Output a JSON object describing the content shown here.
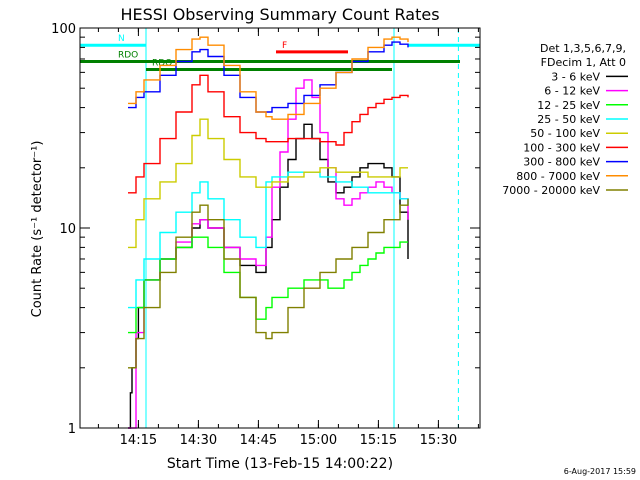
{
  "chart_data": {
    "type": "line",
    "title": "HESSI Observing Summary Count Rates",
    "xlabel": "Start Time (13-Feb-15 14:00:22)",
    "ylabel": "Count Rate (s⁻¹ detector⁻¹)",
    "y_scale": "log",
    "ylim": [
      1,
      100
    ],
    "xlim": [
      0,
      100
    ],
    "x_unit": "minutes after 14:00:22",
    "x_ticks": [
      {
        "value": 14.6,
        "label": "14:15"
      },
      {
        "value": 29.6,
        "label": "14:30"
      },
      {
        "value": 44.6,
        "label": "14:45"
      },
      {
        "value": 59.6,
        "label": "15:00"
      },
      {
        "value": 74.6,
        "label": "15:15"
      },
      {
        "value": 89.6,
        "label": "15:30"
      }
    ],
    "y_ticks": [
      {
        "value": 1,
        "label": "1"
      },
      {
        "value": 10,
        "label": "10"
      },
      {
        "value": 100,
        "label": "100"
      }
    ],
    "legend": {
      "placement": "right",
      "header": [
        "Det 1,3,5,6,7,9,",
        "FDecim 1, Att 0"
      ]
    },
    "series": [
      {
        "name": "3 - 6 keV",
        "color": "#000000",
        "x": [
          12,
          12.6,
          13,
          14,
          14.6,
          16,
          20,
          24,
          28,
          30,
          32,
          36,
          40,
          44,
          46.5,
          48,
          50,
          52,
          54,
          56,
          58,
          60,
          62,
          64,
          66,
          68,
          70,
          72,
          74,
          76,
          78,
          80,
          82
        ],
        "y": [
          1,
          1.5,
          2,
          2.8,
          4,
          5.5,
          7,
          8,
          10,
          11,
          10,
          8,
          6.5,
          6,
          8,
          11,
          16,
          22,
          28,
          33,
          28,
          22,
          17,
          15,
          16,
          18,
          20,
          21,
          21,
          20,
          18,
          12,
          7
        ]
      },
      {
        "name": "6 - 12 keV",
        "color": "#ff00ff",
        "x": [
          12,
          14,
          16,
          20,
          24,
          28,
          30,
          32,
          36,
          40,
          44,
          46.5,
          48,
          50,
          52,
          54,
          56,
          58,
          60,
          62,
          64,
          66,
          68,
          70,
          72,
          74,
          76,
          78,
          80,
          82
        ],
        "y": [
          1,
          3,
          5.5,
          7,
          8.5,
          10.5,
          11,
          10,
          8,
          7,
          6.5,
          9,
          16,
          24,
          35,
          50,
          55,
          45,
          30,
          20,
          14,
          13,
          14,
          15,
          16,
          17,
          16,
          15,
          14,
          11
        ]
      },
      {
        "name": "12 - 25 keV",
        "color": "#00ff00",
        "x": [
          12,
          14,
          16,
          20,
          24,
          28,
          30,
          32,
          36,
          40,
          44,
          46.5,
          48,
          52,
          56,
          60,
          62,
          64,
          66,
          68,
          70,
          72,
          74,
          76,
          78,
          80,
          82
        ],
        "y": [
          3,
          4,
          5.5,
          7,
          8,
          9,
          9,
          8,
          6,
          4.5,
          3.5,
          4,
          4.5,
          5,
          5.5,
          5.5,
          5,
          5,
          5.5,
          6,
          6.5,
          7,
          7.5,
          8,
          8,
          8.5,
          8.5
        ]
      },
      {
        "name": "25 - 50 keV",
        "color": "#00ffff",
        "x": [
          12,
          14,
          16,
          20,
          24,
          28,
          30,
          32,
          36,
          40,
          44,
          46.5,
          48,
          52,
          56,
          60,
          64,
          68,
          72,
          76,
          80,
          82
        ],
        "y": [
          4,
          5.5,
          7,
          9.5,
          12,
          15,
          17,
          14,
          11,
          9,
          8,
          17,
          18,
          19,
          19,
          18,
          17,
          16,
          15,
          15,
          14,
          13
        ]
      },
      {
        "name": "50 - 100 keV",
        "color": "#cccc00",
        "x": [
          12,
          14,
          16,
          20,
          24,
          28,
          30,
          32,
          36,
          40,
          44,
          46.5,
          48,
          52,
          56,
          60,
          64,
          68,
          72,
          76,
          80,
          82
        ],
        "y": [
          8,
          11,
          14,
          17,
          21,
          29,
          35,
          28,
          22,
          18,
          16,
          16,
          17,
          18,
          19,
          20,
          19,
          19,
          18,
          18,
          20,
          20
        ]
      },
      {
        "name": "100 - 300 keV",
        "color": "#ff0000",
        "x": [
          12,
          14,
          16,
          20,
          24,
          28,
          30,
          32,
          36,
          40,
          44,
          46.5,
          48,
          52,
          56,
          60,
          64,
          66,
          68,
          70,
          72,
          74,
          76,
          78,
          80,
          82
        ],
        "y": [
          15,
          18,
          21,
          28,
          38,
          52,
          58,
          48,
          36,
          30,
          28,
          27,
          27,
          28,
          28,
          27,
          26,
          30,
          34,
          37,
          40,
          42,
          44,
          45,
          46,
          45
        ]
      },
      {
        "name": "300 - 800 keV",
        "color": "#0000ff",
        "x": [
          12,
          14,
          16,
          20,
          24,
          28,
          30,
          32,
          36,
          40,
          44,
          46.5,
          48,
          52,
          56,
          60,
          64,
          68,
          72,
          76,
          78,
          80,
          82
        ],
        "y": [
          40,
          45,
          48,
          58,
          68,
          76,
          78,
          72,
          58,
          45,
          38,
          38,
          40,
          42,
          46,
          52,
          60,
          68,
          76,
          82,
          85,
          83,
          80
        ]
      },
      {
        "name": "800 - 7000 keV",
        "color": "#ff8c00",
        "x": [
          12,
          14,
          16,
          20,
          24,
          28,
          30,
          32,
          36,
          40,
          44,
          46.5,
          48,
          52,
          56,
          60,
          64,
          68,
          72,
          76,
          78,
          80,
          82
        ],
        "y": [
          42,
          48,
          55,
          65,
          78,
          88,
          90,
          82,
          65,
          48,
          38,
          36,
          35,
          37,
          42,
          50,
          60,
          70,
          80,
          88,
          90,
          88,
          85
        ]
      },
      {
        "name": "7000 - 20000 keV",
        "color": "#808000",
        "x": [
          12,
          14,
          16,
          20,
          24,
          28,
          30,
          32,
          36,
          40,
          44,
          46.5,
          48,
          52,
          56,
          60,
          64,
          68,
          72,
          76,
          80,
          82
        ],
        "y": [
          2,
          2.8,
          4,
          6,
          9,
          12,
          13,
          11,
          7,
          4.5,
          3,
          2.8,
          3,
          4,
          5,
          6,
          7,
          8,
          9.5,
          11,
          13,
          14
        ]
      }
    ],
    "flag_bars": [
      {
        "label": "N",
        "color": "#00ffff",
        "y": 82,
        "segments": [
          [
            0,
            16.5
          ],
          [
            82,
            100
          ]
        ]
      },
      {
        "label": "RDO",
        "color": "#008000",
        "y": 68,
        "segments": [
          [
            0,
            95
          ]
        ]
      },
      {
        "label": "RDO",
        "color": "#008000",
        "y": 62,
        "segments": [
          [
            16.5,
            78
          ]
        ]
      },
      {
        "label": "F",
        "color": "#ff0000",
        "y": 76,
        "segments": [
          [
            49,
            67
          ]
        ]
      }
    ],
    "vertical_markers": [
      {
        "x": 16.5,
        "color": "#00ffff",
        "style": "solid"
      },
      {
        "x": 78.5,
        "color": "#00ffff",
        "style": "solid"
      },
      {
        "x": 94.6,
        "color": "#00ffff",
        "style": "dashed"
      }
    ],
    "footer_date": "6-Aug-2017 15:59",
    "grid": false
  }
}
